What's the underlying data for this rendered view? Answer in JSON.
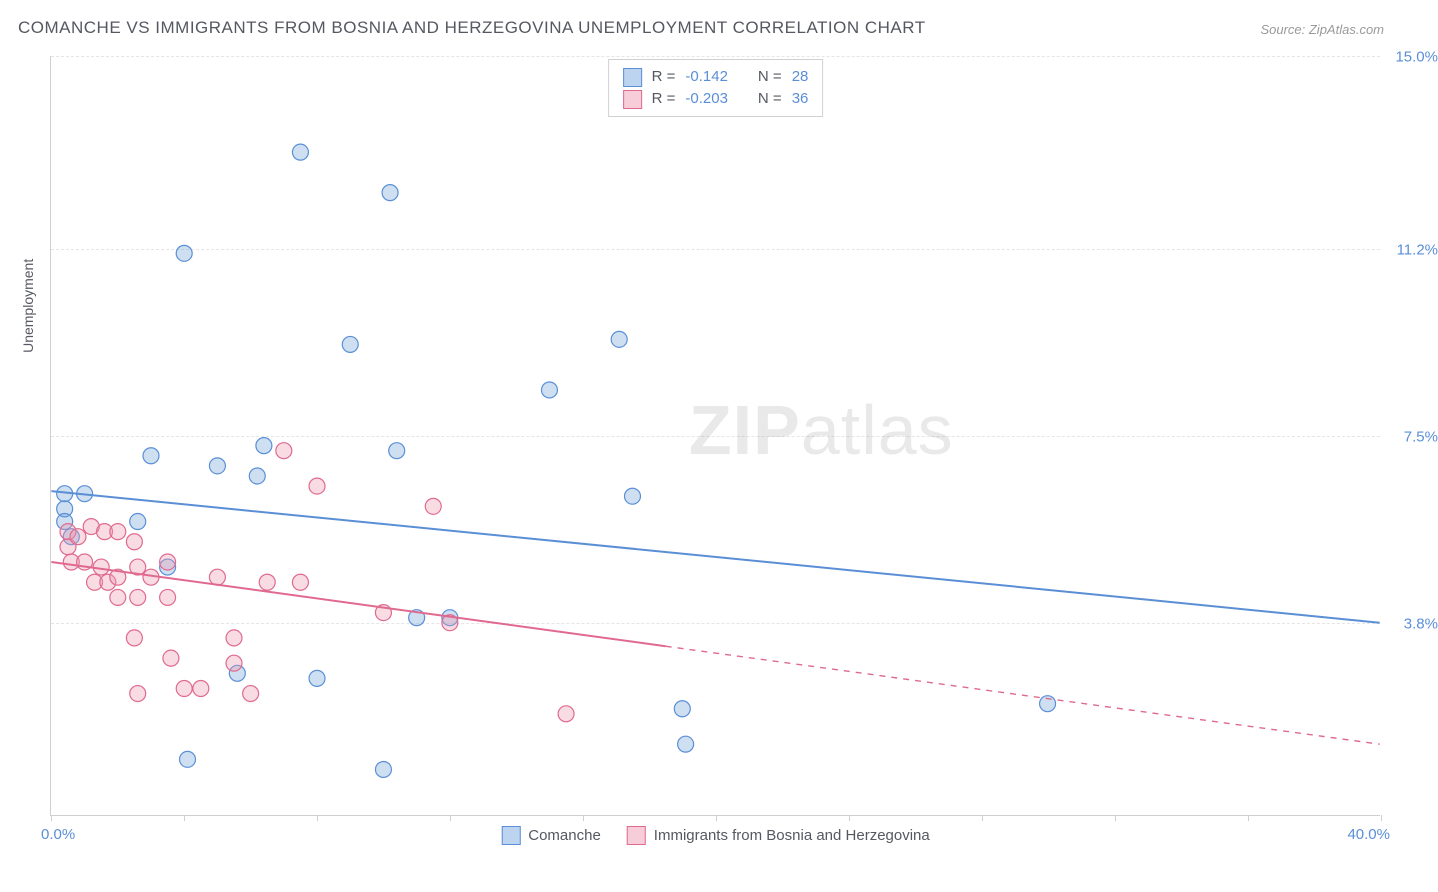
{
  "title": "COMANCHE VS IMMIGRANTS FROM BOSNIA AND HERZEGOVINA UNEMPLOYMENT CORRELATION CHART",
  "source": "Source: ZipAtlas.com",
  "watermark": {
    "part1": "ZIP",
    "part2": "atlas"
  },
  "ylabel": "Unemployment",
  "chart": {
    "type": "scatter",
    "background_color": "#ffffff",
    "grid_color": "#e5e5e5",
    "axis_color": "#cfcfcf",
    "xlim": [
      0.0,
      40.0
    ],
    "ylim": [
      0.0,
      15.0
    ],
    "x_tick_positions": [
      0,
      4,
      8,
      12,
      16,
      20,
      24,
      28,
      32,
      36,
      40
    ],
    "x_start_label": "0.0%",
    "x_end_label": "40.0%",
    "y_gridlines": [
      {
        "value": 3.8,
        "label": "3.8%"
      },
      {
        "value": 7.5,
        "label": "7.5%"
      },
      {
        "value": 11.2,
        "label": "11.2%"
      },
      {
        "value": 15.0,
        "label": "15.0%"
      }
    ],
    "marker_radius": 8,
    "marker_stroke_width": 1.2,
    "trend_line_width": 2,
    "series": [
      {
        "id": "comanche",
        "label": "Comanche",
        "fill": "rgba(114,162,216,0.35)",
        "stroke": "#5a8fd6",
        "swatch_fill": "#bcd4ef",
        "swatch_border": "#5a8fd6",
        "r_value": "-0.142",
        "n_value": "28",
        "trend": {
          "x1": 0.0,
          "y1": 6.4,
          "x2": 40.0,
          "y2": 3.8,
          "solid_until_x": 40.0
        },
        "points": [
          [
            0.4,
            6.35
          ],
          [
            0.4,
            6.05
          ],
          [
            0.4,
            5.8
          ],
          [
            4.0,
            11.1
          ],
          [
            3.0,
            7.1
          ],
          [
            2.6,
            5.8
          ],
          [
            6.2,
            6.7
          ],
          [
            7.5,
            13.1
          ],
          [
            6.4,
            7.3
          ],
          [
            9.0,
            9.3
          ],
          [
            10.4,
            7.2
          ],
          [
            5.6,
            2.8
          ],
          [
            4.1,
            1.1
          ],
          [
            8.0,
            2.7
          ],
          [
            10.2,
            12.3
          ],
          [
            10.0,
            0.9
          ],
          [
            11.0,
            3.9
          ],
          [
            12.0,
            3.9
          ],
          [
            15.0,
            8.4
          ],
          [
            17.1,
            9.4
          ],
          [
            17.5,
            6.3
          ],
          [
            19.0,
            2.1
          ],
          [
            19.1,
            1.4
          ],
          [
            3.5,
            4.9
          ],
          [
            30.0,
            2.2
          ],
          [
            5.0,
            6.9
          ],
          [
            1.0,
            6.35
          ],
          [
            0.6,
            5.5
          ]
        ]
      },
      {
        "id": "bosnia",
        "label": "Immigrants from Bosnia and Herzegovina",
        "fill": "rgba(236,152,175,0.35)",
        "stroke": "#e06a8f",
        "swatch_fill": "#f6cdd9",
        "swatch_border": "#e06a8f",
        "r_value": "-0.203",
        "n_value": "36",
        "trend": {
          "x1": 0.0,
          "y1": 5.0,
          "x2": 40.0,
          "y2": 1.4,
          "solid_until_x": 18.5
        },
        "points": [
          [
            0.5,
            5.6
          ],
          [
            0.5,
            5.3
          ],
          [
            0.6,
            5.0
          ],
          [
            0.8,
            5.5
          ],
          [
            1.0,
            5.0
          ],
          [
            1.2,
            5.7
          ],
          [
            1.3,
            4.6
          ],
          [
            1.6,
            5.6
          ],
          [
            1.5,
            4.9
          ],
          [
            1.7,
            4.6
          ],
          [
            2.0,
            5.6
          ],
          [
            2.0,
            4.7
          ],
          [
            2.0,
            4.3
          ],
          [
            2.5,
            5.4
          ],
          [
            2.6,
            4.9
          ],
          [
            2.6,
            4.3
          ],
          [
            2.5,
            3.5
          ],
          [
            2.6,
            2.4
          ],
          [
            3.0,
            4.7
          ],
          [
            3.5,
            5.0
          ],
          [
            3.5,
            4.3
          ],
          [
            3.6,
            3.1
          ],
          [
            4.0,
            2.5
          ],
          [
            4.5,
            2.5
          ],
          [
            5.0,
            4.7
          ],
          [
            5.5,
            3.5
          ],
          [
            5.5,
            3.0
          ],
          [
            6.0,
            2.4
          ],
          [
            6.5,
            4.6
          ],
          [
            7.0,
            7.2
          ],
          [
            7.5,
            4.6
          ],
          [
            8.0,
            6.5
          ],
          [
            10.0,
            4.0
          ],
          [
            11.5,
            6.1
          ],
          [
            12.0,
            3.8
          ],
          [
            15.5,
            2.0
          ]
        ]
      }
    ]
  },
  "legend_stats_labels": {
    "r": "R =",
    "n": "N ="
  }
}
